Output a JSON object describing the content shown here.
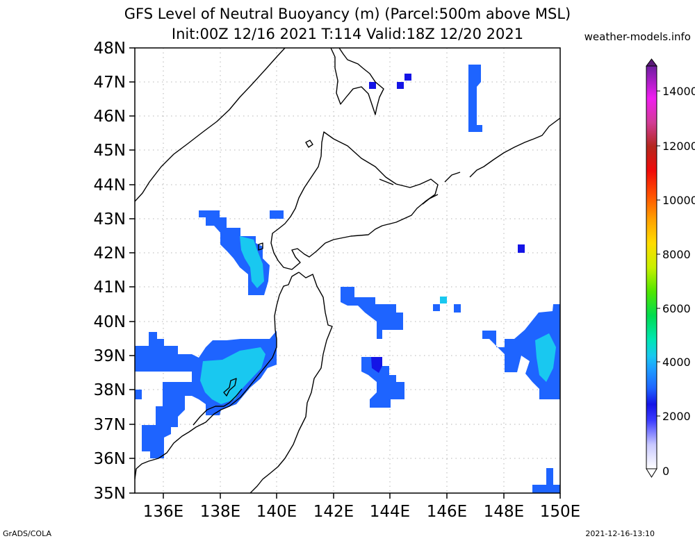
{
  "title_line1": "GFS Level of Neutral Buoyancy (m) (Parcel:500m above MSL)",
  "title_line2": "Init:00Z 12/16 2021 T:114 Valid:18Z 12/20 2021",
  "credit": "weather-models.info",
  "footer_left": "GrADS/COLA",
  "footer_right": "2021-12-16-13:10",
  "lat_labels": [
    "48N",
    "47N",
    "46N",
    "45N",
    "44N",
    "43N",
    "42N",
    "41N",
    "40N",
    "39N",
    "38N",
    "37N",
    "36N",
    "35N"
  ],
  "lon_labels": [
    "136E",
    "138E",
    "140E",
    "142E",
    "144E",
    "146E",
    "148E",
    "150E"
  ],
  "colorbar_labels": [
    "14000",
    "12000",
    "10000",
    "8000",
    "6000",
    "4000",
    "2000",
    "0"
  ],
  "colors": {
    "coast": "#000000",
    "light_blue": "#1e64ff",
    "cyan": "#19c8f0",
    "dark_blue": "#1414e6"
  }
}
